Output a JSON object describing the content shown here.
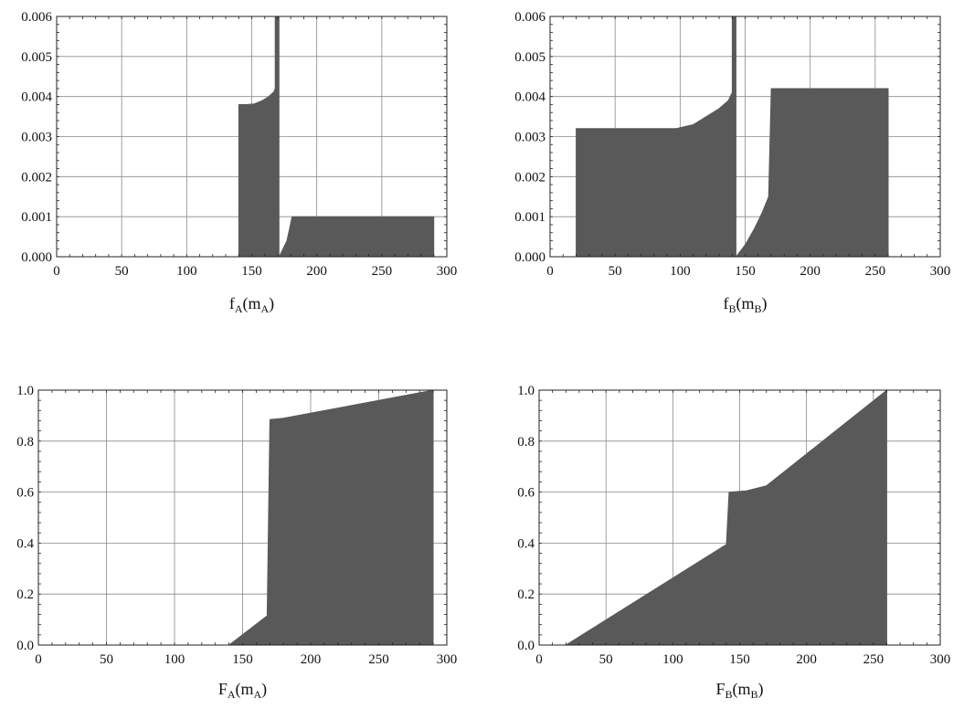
{
  "chart_data": [
    {
      "type": "area",
      "xlabel": {
        "main": "f",
        "sub1": "A",
        "mid": "(m",
        "sub2": "A",
        "end": ")"
      },
      "xlim": [
        0,
        300
      ],
      "ylim": [
        0,
        0.006
      ],
      "xticks": [
        0,
        50,
        100,
        150,
        200,
        250,
        300
      ],
      "yticks": [
        0,
        0.001,
        0.002,
        0.003,
        0.004,
        0.005,
        0.006
      ],
      "ytick_labels": [
        "0.000",
        "0.001",
        "0.002",
        "0.003",
        "0.004",
        "0.005",
        "0.006"
      ],
      "grid": true,
      "fill_color": "#595959",
      "series": [
        {
          "x": [
            140,
            140,
            146,
            152,
            158,
            163,
            167,
            168,
            168,
            171,
            171
          ],
          "y": [
            0,
            0.0038,
            0.0038,
            0.00382,
            0.0039,
            0.004,
            0.00412,
            0.0042,
            0.006,
            0.006,
            0
          ]
        },
        {
          "x": [
            171,
            174,
            177,
            179,
            181,
            181,
            290,
            290
          ],
          "y": [
            0,
            0.0002,
            0.0004,
            0.0007,
            0.001,
            0.001,
            0.001,
            0
          ]
        }
      ]
    },
    {
      "type": "area",
      "xlabel": {
        "main": "f",
        "sub1": "B",
        "mid": "(m",
        "sub2": "B",
        "end": ")"
      },
      "xlim": [
        0,
        300
      ],
      "ylim": [
        0,
        0.006
      ],
      "xticks": [
        0,
        50,
        100,
        150,
        200,
        250,
        300
      ],
      "yticks": [
        0,
        0.001,
        0.002,
        0.003,
        0.004,
        0.005,
        0.006
      ],
      "ytick_labels": [
        "0.000",
        "0.001",
        "0.002",
        "0.003",
        "0.004",
        "0.005",
        "0.006"
      ],
      "grid": true,
      "fill_color": "#595959",
      "series": [
        {
          "x": [
            20,
            20,
            97,
            110,
            120,
            130,
            137,
            140,
            140,
            143,
            143
          ],
          "y": [
            0,
            0.0032,
            0.0032,
            0.0033,
            0.0035,
            0.0037,
            0.0039,
            0.0041,
            0.006,
            0.006,
            0
          ]
        },
        {
          "x": [
            143,
            150,
            157,
            163,
            168,
            170,
            170,
            260,
            260
          ],
          "y": [
            0,
            0.0003,
            0.0007,
            0.0011,
            0.0015,
            0.0042,
            0.0042,
            0.0042,
            0
          ]
        }
      ]
    },
    {
      "type": "area",
      "xlabel": {
        "main": "F",
        "sub1": "A",
        "mid": "(m",
        "sub2": "A",
        "end": ")"
      },
      "xlim": [
        0,
        300
      ],
      "ylim": [
        0,
        1
      ],
      "xticks": [
        0,
        50,
        100,
        150,
        200,
        250,
        300
      ],
      "yticks": [
        0,
        0.2,
        0.4,
        0.6,
        0.8,
        1.0
      ],
      "ytick_labels": [
        "0.0",
        "0.2",
        "0.4",
        "0.6",
        "0.8",
        "1.0"
      ],
      "grid": true,
      "fill_color": "#595959",
      "series": [
        {
          "x": [
            140,
            168,
            170,
            180,
            290,
            290
          ],
          "y": [
            0,
            0.115,
            0.885,
            0.89,
            1.0,
            0
          ]
        }
      ]
    },
    {
      "type": "area",
      "xlabel": {
        "main": "F",
        "sub1": "B",
        "mid": "(m",
        "sub2": "B",
        "end": ")"
      },
      "xlim": [
        0,
        300
      ],
      "ylim": [
        0,
        1
      ],
      "xticks": [
        0,
        50,
        100,
        150,
        200,
        250,
        300
      ],
      "yticks": [
        0,
        0.2,
        0.4,
        0.6,
        0.8,
        1.0
      ],
      "ytick_labels": [
        "0.0",
        "0.2",
        "0.4",
        "0.6",
        "0.8",
        "1.0"
      ],
      "grid": true,
      "fill_color": "#595959",
      "series": [
        {
          "x": [
            20,
            140,
            142,
            155,
            170,
            260,
            260
          ],
          "y": [
            0,
            0.395,
            0.6,
            0.605,
            0.625,
            1.0,
            0
          ]
        }
      ]
    }
  ]
}
